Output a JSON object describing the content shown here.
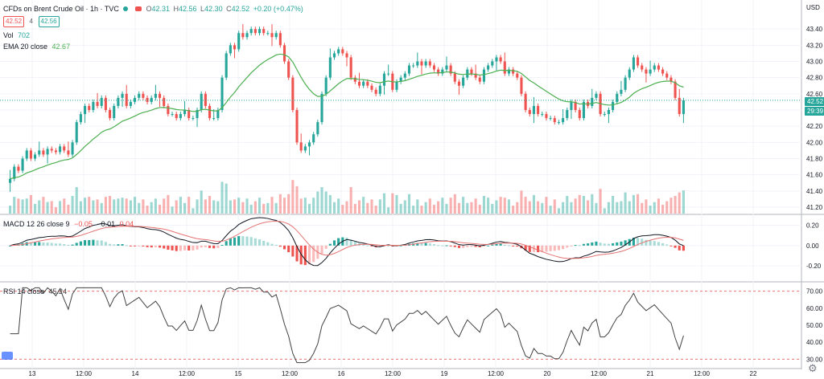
{
  "header": {
    "symbol": "CFDs on Brent Crude Oil · 1h · TVC",
    "o_label": "O",
    "o": "42.31",
    "h_label": "H",
    "h": "42.56",
    "l_label": "L",
    "l": "42.30",
    "c_label": "C",
    "c": "42.52",
    "change": "+0.20 (+0.47%)",
    "bid": "42.52",
    "spread": "4",
    "ask": "42.56"
  },
  "indicators": {
    "vol_label": "Vol",
    "vol_value": "702",
    "ema_label": "EMA 20 close",
    "ema_value": "42.67",
    "macd_label": "MACD 12 26 close 9",
    "macd_hist": "−0.05",
    "macd_line": "−0.01",
    "macd_signal": "0.04",
    "rsi_label": "RSI 14 close",
    "rsi_value": "45.24"
  },
  "badges": {
    "price": "42.52",
    "countdown": "29:39"
  },
  "colors": {
    "up": "#26a69a",
    "down": "#ef5350",
    "ema": "#4caf50",
    "signal": "#e57373",
    "macd": "#131722",
    "rsi": "#424242",
    "grid": "#f0f3fa"
  },
  "chart_data": [
    {
      "type": "candlestick",
      "title": "CFDs on Brent Crude Oil · 1h · TVC",
      "currency": "USD",
      "ylim": [
        41.2,
        43.6
      ],
      "y_ticks": [
        "43.40",
        "43.20",
        "43.00",
        "42.80",
        "42.60",
        "42.40",
        "42.20",
        "42.00",
        "41.80",
        "41.60",
        "41.40",
        "41.20"
      ],
      "x_ticks": [
        "13",
        "12:00",
        "14",
        "12:00",
        "15",
        "12:00",
        "16",
        "12:00",
        "19",
        "12:00",
        "20",
        "12:00",
        "21",
        "12:00",
        "22"
      ],
      "close": [
        41.55,
        41.7,
        41.65,
        41.8,
        41.9,
        41.8,
        41.85,
        41.9,
        41.85,
        41.92,
        41.9,
        41.88,
        41.95,
        41.9,
        41.85,
        42.0,
        42.25,
        42.35,
        42.45,
        42.4,
        42.5,
        42.45,
        42.55,
        42.4,
        42.3,
        42.45,
        42.55,
        42.6,
        42.45,
        42.5,
        42.55,
        42.6,
        42.55,
        42.5,
        42.55,
        42.6,
        42.55,
        42.45,
        42.35,
        42.35,
        42.3,
        42.35,
        42.4,
        42.3,
        42.3,
        42.4,
        42.6,
        42.45,
        42.3,
        42.3,
        42.4,
        42.8,
        43.1,
        43.2,
        43.15,
        43.35,
        43.3,
        43.35,
        43.4,
        43.35,
        43.4,
        43.35,
        43.35,
        43.3,
        43.35,
        43.2,
        43.0,
        42.8,
        42.4,
        42.0,
        41.9,
        41.95,
        42.0,
        42.1,
        42.25,
        42.6,
        42.8,
        43.05,
        43.1,
        43.15,
        43.1,
        43.05,
        42.8,
        42.75,
        42.7,
        42.75,
        42.7,
        42.65,
        42.6,
        42.7,
        42.85,
        42.85,
        42.65,
        42.75,
        42.8,
        42.85,
        42.95,
        42.95,
        43.0,
        42.95,
        43.0,
        42.95,
        42.9,
        42.85,
        42.9,
        42.95,
        42.85,
        42.75,
        42.7,
        42.8,
        42.9,
        42.85,
        42.8,
        42.75,
        42.9,
        42.95,
        43.0,
        43.05,
        43.0,
        42.85,
        42.9,
        42.85,
        42.8,
        42.6,
        42.4,
        42.35,
        42.45,
        42.35,
        42.35,
        42.3,
        42.3,
        42.25,
        42.25,
        42.3,
        42.4,
        42.5,
        42.4,
        42.3,
        42.5,
        42.45,
        42.55,
        42.6,
        42.35,
        42.35,
        42.4,
        42.5,
        42.6,
        42.65,
        42.8,
        42.9,
        43.05,
        42.95,
        42.9,
        42.85,
        42.9,
        42.95,
        42.9,
        42.85,
        42.8,
        42.75,
        42.55,
        42.35,
        42.52
      ],
      "volume_max_label": "",
      "ema_period": 20
    },
    {
      "type": "macd",
      "title": "MACD 12 26 close 9",
      "ylim": [
        -0.35,
        0.3
      ],
      "y_ticks": [
        "0.20",
        "0.00",
        "-0.20"
      ]
    },
    {
      "type": "line",
      "title": "RSI 14 close",
      "ylim": [
        25,
        75
      ],
      "y_ticks": [
        "70.00",
        "60.00",
        "50.00",
        "40.00",
        "30.00"
      ],
      "bands": [
        70,
        30
      ]
    }
  ]
}
